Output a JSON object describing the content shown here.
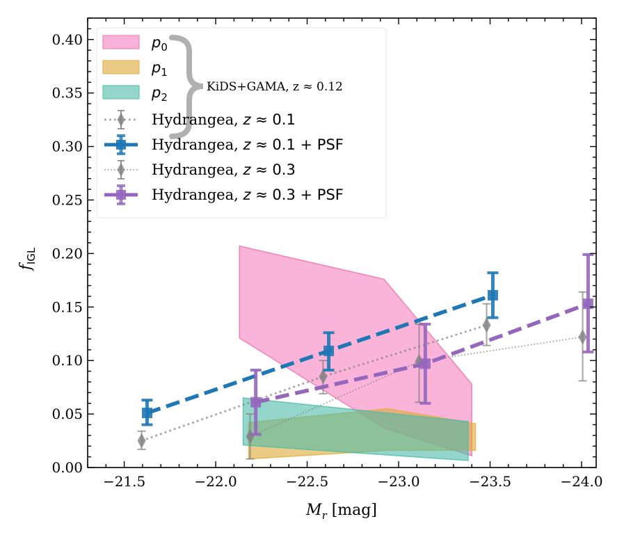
{
  "chart_data": {
    "type": "line",
    "title": "",
    "xlabel": "M_r [mag]",
    "xlabel_main": "M",
    "xlabel_sub": "r",
    "xlabel_unit": " [mag]",
    "ylabel": "f_IGL",
    "ylabel_main": "f",
    "ylabel_sub": "IGL",
    "xlim": [
      -21.3,
      -24.08
    ],
    "ylim": [
      0.0,
      0.42
    ],
    "x_inverted": true,
    "grid": false,
    "legend_position": "top-left",
    "xticks": [
      -21.5,
      -22.0,
      -22.5,
      -23.0,
      -23.5,
      -24.0
    ],
    "xtick_labels": [
      "−21.5",
      "−22.0",
      "−22.5",
      "−23.0",
      "−23.5",
      "−24.0"
    ],
    "yticks": [
      0.0,
      0.05,
      0.1,
      0.15,
      0.2,
      0.25,
      0.3,
      0.35,
      0.4
    ],
    "ytick_labels": [
      "0.00",
      "0.05",
      "0.10",
      "0.15",
      "0.20",
      "0.25",
      "0.30",
      "0.35",
      "0.40"
    ],
    "regions": [
      {
        "name": "p0",
        "label_main": "p",
        "label_sub": "0",
        "fill": "#f781bf",
        "edge": "#f06fa6",
        "polygon": [
          [
            -22.13,
            0.207
          ],
          [
            -22.92,
            0.176
          ],
          [
            -23.4,
            0.078
          ],
          [
            -23.4,
            0.011
          ],
          [
            -22.92,
            0.037
          ],
          [
            -22.13,
            0.121
          ]
        ]
      },
      {
        "name": "p1",
        "label_main": "p",
        "label_sub": "1",
        "fill": "#dea935",
        "edge": "#e2ae40",
        "polygon": [
          [
            -22.18,
            0.042
          ],
          [
            -22.94,
            0.055
          ],
          [
            -23.42,
            0.041
          ],
          [
            -23.42,
            0.016
          ],
          [
            -22.94,
            0.016
          ],
          [
            -22.18,
            0.008
          ]
        ]
      },
      {
        "name": "p2",
        "label_main": "p",
        "label_sub": "2",
        "fill": "#4dbba8",
        "edge": "#4dbba8",
        "polygon": [
          [
            -22.15,
            0.065
          ],
          [
            -23.38,
            0.043
          ],
          [
            -23.38,
            0.0065
          ],
          [
            -22.15,
            0.021
          ]
        ]
      }
    ],
    "region_group_label": "KiDS+GAMA, z ≈ 0.12",
    "series": [
      {
        "name": "Hydrangea, z≈0.1",
        "label_prefix": "Hydrangea, ",
        "label_z": "z",
        "label_suffix": " ≈ 0.1",
        "color": "#808080",
        "marker": "diamond",
        "linestyle": "dotted-thick",
        "x": [
          -21.595,
          -22.587,
          -23.481
        ],
        "y": [
          0.025,
          0.085,
          0.133
        ],
        "yerr_low": [
          0.017,
          0.069,
          0.114
        ],
        "yerr_high": [
          0.034,
          0.1,
          0.153
        ]
      },
      {
        "name": "Hydrangea, z≈0.1 + PSF",
        "label_prefix": "Hydrangea, ",
        "label_z": "z",
        "label_suffix": " ≈ 0.1 + PSF",
        "color": "#1f77b4",
        "marker": "square",
        "linestyle": "dashed",
        "x": [
          -21.625,
          -22.618,
          -23.515
        ],
        "y": [
          0.051,
          0.109,
          0.161
        ],
        "yerr_low": [
          0.04,
          0.091,
          0.14
        ],
        "yerr_high": [
          0.063,
          0.126,
          0.182
        ]
      },
      {
        "name": "Hydrangea, z≈0.3",
        "label_prefix": "Hydrangea, ",
        "label_z": "z",
        "label_suffix": " ≈ 0.3",
        "color": "#808080",
        "marker": "diamond",
        "linestyle": "dotted-thin",
        "x": [
          -22.188,
          -23.112,
          -24.006
        ],
        "y": [
          0.029,
          0.099,
          0.122
        ],
        "yerr_low": [
          0.008,
          0.061,
          0.081
        ],
        "yerr_high": [
          0.05,
          0.134,
          0.164
        ]
      },
      {
        "name": "Hydrangea, z≈0.3 + PSF",
        "label_prefix": "Hydrangea, ",
        "label_z": "z",
        "label_suffix": " ≈ 0.3 + PSF",
        "color": "#9467bd",
        "marker": "square",
        "linestyle": "dashed",
        "x": [
          -22.219,
          -23.146,
          -24.036
        ],
        "y": [
          0.061,
          0.097,
          0.153
        ],
        "yerr_low": [
          0.031,
          0.06,
          0.108
        ],
        "yerr_high": [
          0.091,
          0.134,
          0.199
        ]
      }
    ]
  }
}
